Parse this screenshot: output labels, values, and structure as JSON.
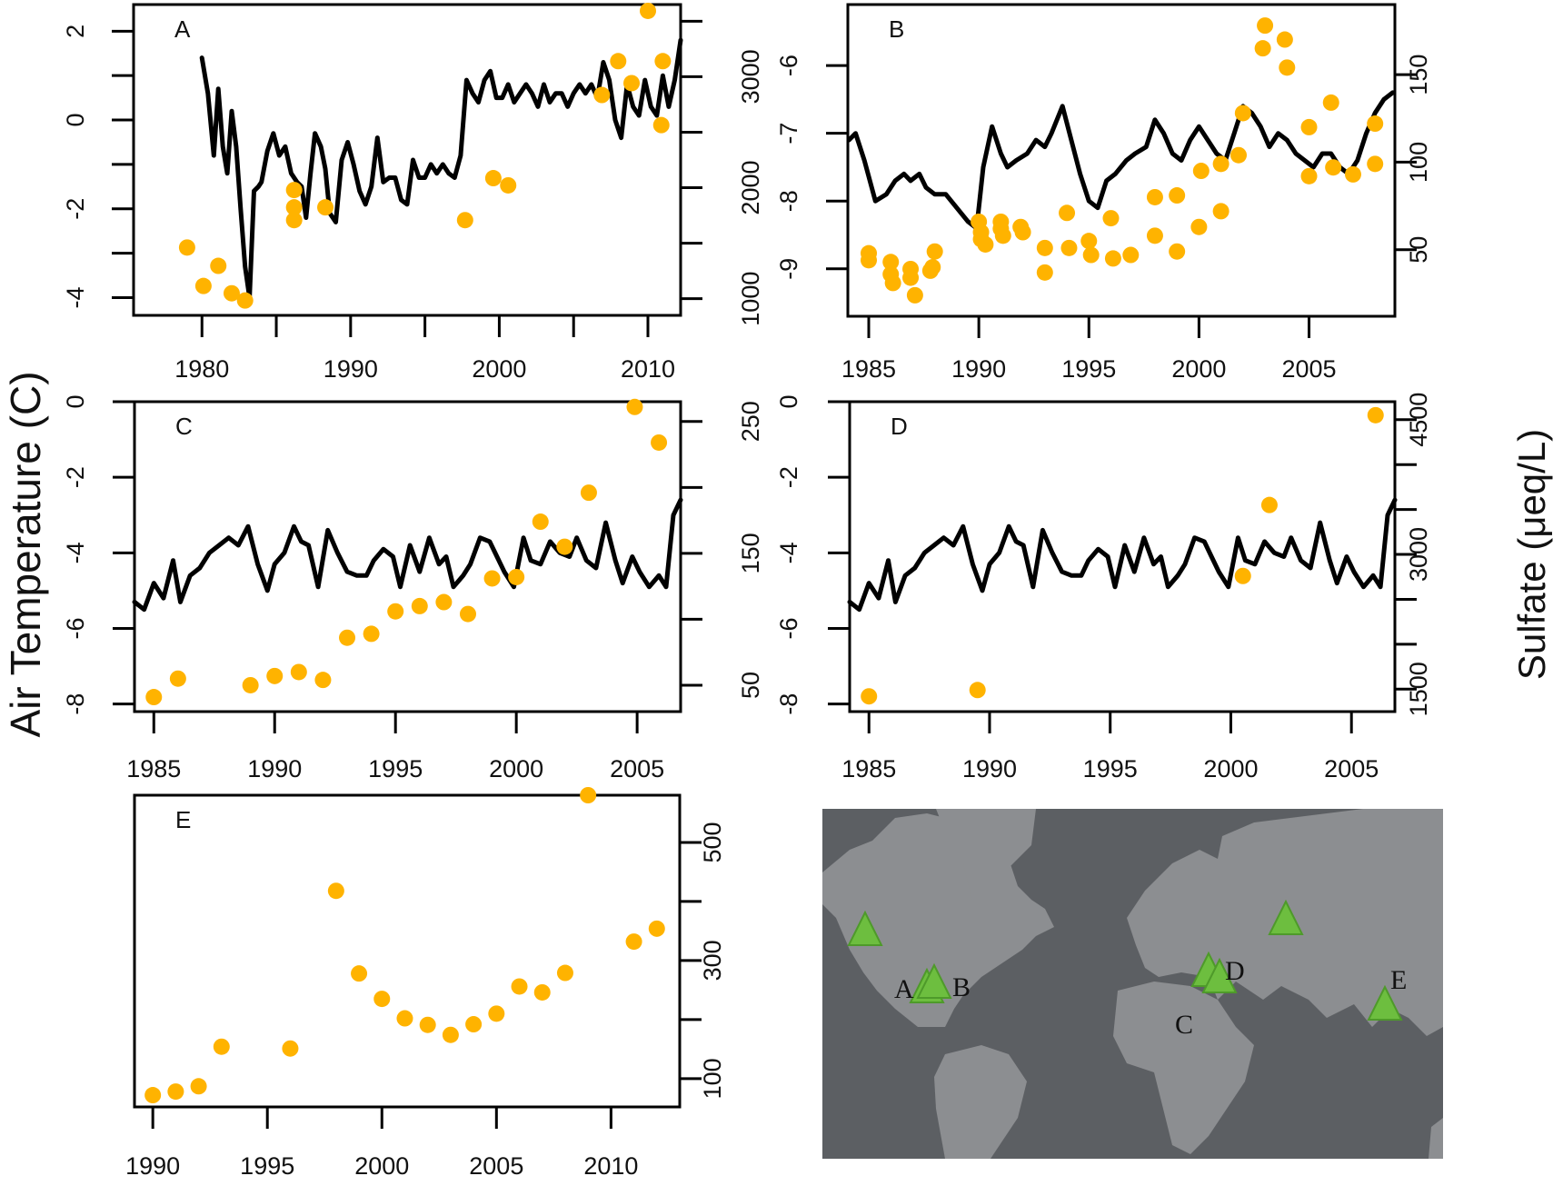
{
  "figure": {
    "left_axis_title": "Air Temperature (C)",
    "right_axis_title": "Sulfate (μeq/L)",
    "colors": {
      "temperature_line": "#000000",
      "sulfate_points": "#FFB300",
      "sulfate_title": "#FFB300",
      "map_ocean": "#5C5F63",
      "map_land": "#8C8E91",
      "site_marker": "#6DBE3F"
    }
  },
  "chart_data": [
    {
      "panel": "A",
      "type": "line+scatter",
      "xlim": [
        1975.4,
        2012.2
      ],
      "x_ticks": [
        1980,
        1985,
        1990,
        1995,
        2000,
        2005,
        2010
      ],
      "x_tick_labels": [
        "1980",
        "1990",
        "2000",
        "2010"
      ],
      "temperature": {
        "ylim": [
          -4.4,
          2.6
        ],
        "y_ticks": [
          2,
          1,
          0,
          -1,
          -2,
          -3,
          -4
        ],
        "y_tick_labels": [
          "2",
          "0",
          "-2",
          "-4"
        ],
        "x": [
          1980.0,
          1980.4,
          1980.8,
          1981.1,
          1981.4,
          1981.7,
          1982.0,
          1982.3,
          1982.6,
          1982.9,
          1983.2,
          1983.5,
          1983.8,
          1984.0,
          1984.4,
          1984.8,
          1985.2,
          1985.6,
          1986.0,
          1986.4,
          1986.7,
          1987.0,
          1987.3,
          1987.6,
          1988.0,
          1988.3,
          1988.6,
          1989.0,
          1989.4,
          1989.8,
          1990.2,
          1990.6,
          1991.0,
          1991.4,
          1991.8,
          1992.2,
          1992.6,
          1993.0,
          1993.4,
          1993.8,
          1994.2,
          1994.6,
          1995.0,
          1995.4,
          1995.8,
          1996.2,
          1996.6,
          1997.0,
          1997.4,
          1997.8,
          1998.2,
          1998.6,
          1999.0,
          1999.4,
          1999.8,
          2000.2,
          2000.6,
          2001.0,
          2001.4,
          2001.8,
          2002.2,
          2002.6,
          2003.0,
          2003.4,
          2003.8,
          2004.2,
          2004.6,
          2005.0,
          2005.4,
          2005.8,
          2006.2,
          2006.6,
          2007.0,
          2007.4,
          2007.8,
          2008.2,
          2008.6,
          2009.0,
          2009.4,
          2009.8,
          2010.2,
          2010.6,
          2011.0,
          2011.4,
          2011.8,
          2012.2
        ],
        "y": [
          1.4,
          0.6,
          -0.8,
          0.7,
          -0.6,
          -1.2,
          0.2,
          -0.6,
          -2.0,
          -3.3,
          -4.0,
          -1.6,
          -1.5,
          -1.4,
          -0.7,
          -0.3,
          -0.8,
          -0.6,
          -1.2,
          -1.4,
          -1.5,
          -2.2,
          -1.2,
          -0.3,
          -0.6,
          -1.1,
          -2.1,
          -2.3,
          -0.9,
          -0.5,
          -1.0,
          -1.6,
          -1.9,
          -1.5,
          -0.4,
          -1.4,
          -1.3,
          -1.3,
          -1.8,
          -1.9,
          -0.9,
          -1.3,
          -1.3,
          -1.0,
          -1.2,
          -1.0,
          -1.2,
          -1.3,
          -0.8,
          0.9,
          0.6,
          0.4,
          0.9,
          1.1,
          0.5,
          0.5,
          0.8,
          0.4,
          0.6,
          0.8,
          0.6,
          0.3,
          0.8,
          0.4,
          0.6,
          0.6,
          0.3,
          0.6,
          0.8,
          0.6,
          0.8,
          0.5,
          1.3,
          0.9,
          0.0,
          -0.4,
          0.8,
          0.3,
          0.1,
          0.9,
          0.3,
          0.1,
          1.0,
          0.3,
          0.9,
          1.8
        ]
      },
      "sulfate": {
        "ylim": [
          850,
          3650
        ],
        "y_ticks": [
          1000,
          1500,
          2000,
          2500,
          3000,
          3500
        ],
        "y_tick_labels": [
          "1000",
          "2000",
          "3000"
        ],
        "x": [
          1979.0,
          1980.1,
          1981.1,
          1982.0,
          1982.9,
          1986.2,
          1986.2,
          1986.2,
          1988.3,
          1997.7,
          1999.6,
          2000.6,
          2006.9,
          2008.0,
          2008.9,
          2010.0,
          2010.9,
          2011.0
        ],
        "y": [
          1461,
          1115,
          1296,
          1049,
          984,
          1979,
          1823,
          1708,
          1823,
          1708,
          2086,
          2021,
          2835,
          3140,
          2942,
          3593,
          2564,
          3140
        ]
      }
    },
    {
      "panel": "B",
      "type": "line+scatter",
      "xlim": [
        1984.05,
        2008.9
      ],
      "x_ticks": [
        1985,
        1990,
        1995,
        2000,
        2005
      ],
      "x_tick_labels": [
        "1985",
        "1990",
        "1995",
        "2000",
        "2005"
      ],
      "temperature": {
        "ylim": [
          -9.7,
          -5.1
        ],
        "y_ticks": [
          -6,
          -7,
          -8,
          -9
        ],
        "y_tick_labels": [
          "-6",
          "-7",
          "-8",
          "-9"
        ],
        "x": [
          1984.1,
          1984.4,
          1984.8,
          1985.3,
          1985.8,
          1986.2,
          1986.6,
          1986.9,
          1987.3,
          1987.6,
          1988.0,
          1988.5,
          1989.0,
          1989.5,
          1989.9,
          1990.2,
          1990.6,
          1991.0,
          1991.3,
          1991.7,
          1992.2,
          1992.6,
          1993.0,
          1993.3,
          1993.8,
          1994.2,
          1994.6,
          1995.0,
          1995.4,
          1995.8,
          1996.2,
          1996.7,
          1997.1,
          1997.6,
          1998.0,
          1998.4,
          1998.8,
          1999.2,
          1999.6,
          2000.0,
          2000.4,
          2000.8,
          2001.2,
          2001.6,
          2002.0,
          2002.4,
          2002.8,
          2003.2,
          2003.6,
          2004.0,
          2004.4,
          2004.8,
          2005.2,
          2005.6,
          2006.0,
          2006.4,
          2006.8,
          2007.2,
          2007.6,
          2008.0,
          2008.4,
          2008.8
        ],
        "y": [
          -7.1,
          -7.0,
          -7.4,
          -8.0,
          -7.9,
          -7.7,
          -7.6,
          -7.7,
          -7.6,
          -7.8,
          -7.9,
          -7.9,
          -8.1,
          -8.3,
          -8.4,
          -7.5,
          -6.9,
          -7.3,
          -7.5,
          -7.4,
          -7.3,
          -7.1,
          -7.2,
          -7.0,
          -6.6,
          -7.1,
          -7.6,
          -8.0,
          -8.1,
          -7.7,
          -7.6,
          -7.4,
          -7.3,
          -7.2,
          -6.8,
          -7.0,
          -7.3,
          -7.4,
          -7.1,
          -6.9,
          -7.1,
          -7.3,
          -7.4,
          -7.0,
          -6.6,
          -6.7,
          -6.9,
          -7.2,
          -7.0,
          -7.1,
          -7.3,
          -7.4,
          -7.5,
          -7.3,
          -7.3,
          -7.5,
          -7.6,
          -7.4,
          -7.0,
          -6.7,
          -6.5,
          -6.4
        ]
      },
      "sulfate": {
        "ylim": [
          12,
          190
        ],
        "y_ticks": [
          50,
          100,
          150
        ],
        "y_tick_labels": [
          "50",
          "100",
          "150"
        ],
        "x": [
          1985.0,
          1985.0,
          1986.0,
          1986.0,
          1986.1,
          1986.9,
          1986.9,
          1987.1,
          1987.8,
          1987.9,
          1988.0,
          1990.0,
          1990.1,
          1990.1,
          1990.3,
          1991.0,
          1991.0,
          1991.1,
          1991.9,
          1992.0,
          1993.0,
          1993.0,
          1994.0,
          1994.1,
          1995.0,
          1995.1,
          1996.0,
          1996.1,
          1996.9,
          1998.0,
          1998.0,
          1999.0,
          1999.0,
          2000.0,
          2000.1,
          2001.0,
          2001.0,
          2001.8,
          2002.0,
          2002.9,
          2003.0,
          2003.9,
          2004.0,
          2005.0,
          2005.0,
          2006.0,
          2006.1,
          2007.0,
          2008.0,
          2008.0
        ],
        "y": [
          48,
          44,
          43,
          36,
          31,
          39,
          34,
          24,
          38,
          40,
          49,
          66,
          60,
          56,
          53,
          66,
          62,
          58,
          63,
          60,
          51,
          37,
          71,
          51,
          55,
          47,
          68,
          45,
          47,
          58,
          80,
          81,
          49,
          63,
          95,
          99,
          72,
          104,
          128,
          165,
          178,
          170,
          154,
          120,
          92,
          134,
          97,
          93,
          99,
          122
        ]
      }
    },
    {
      "panel": "C",
      "type": "line+scatter",
      "xlim": [
        1984.2,
        2006.8
      ],
      "x_ticks": [
        1985,
        1990,
        1995,
        2000,
        2005
      ],
      "x_tick_labels": [
        "1985",
        "1990",
        "1995",
        "2000",
        "2005"
      ],
      "temperature": {
        "ylim": [
          -8.2,
          0.0
        ],
        "y_ticks": [
          0,
          -2,
          -4,
          -6,
          -8
        ],
        "y_tick_labels": [
          "0",
          "-2",
          "-4",
          "-6",
          "-8"
        ],
        "x": [
          1984.2,
          1984.6,
          1985.0,
          1985.4,
          1985.8,
          1986.1,
          1986.5,
          1986.9,
          1987.3,
          1987.7,
          1988.1,
          1988.5,
          1988.9,
          1989.3,
          1989.7,
          1990.0,
          1990.4,
          1990.8,
          1991.1,
          1991.4,
          1991.8,
          1992.2,
          1992.6,
          1993.0,
          1993.4,
          1993.8,
          1994.1,
          1994.5,
          1994.9,
          1995.2,
          1995.6,
          1996.0,
          1996.4,
          1996.8,
          1997.1,
          1997.4,
          1997.8,
          1998.1,
          1998.5,
          1998.9,
          1999.2,
          1999.5,
          1999.9,
          2000.3,
          2000.6,
          2001.0,
          2001.4,
          2001.8,
          2002.2,
          2002.5,
          2002.9,
          2003.3,
          2003.7,
          2004.1,
          2004.4,
          2004.8,
          2005.1,
          2005.5,
          2005.9,
          2006.2,
          2006.5,
          2006.8
        ],
        "y": [
          -5.3,
          -5.5,
          -4.8,
          -5.2,
          -4.2,
          -5.3,
          -4.6,
          -4.4,
          -4.0,
          -3.8,
          -3.6,
          -3.8,
          -3.3,
          -4.3,
          -5.0,
          -4.3,
          -4.0,
          -3.3,
          -3.7,
          -3.8,
          -4.9,
          -3.4,
          -4.0,
          -4.5,
          -4.6,
          -4.6,
          -4.2,
          -3.9,
          -4.1,
          -4.9,
          -3.8,
          -4.5,
          -3.6,
          -4.3,
          -4.1,
          -4.9,
          -4.6,
          -4.3,
          -3.6,
          -3.7,
          -4.1,
          -4.5,
          -4.9,
          -3.6,
          -4.2,
          -4.3,
          -3.7,
          -4.0,
          -4.1,
          -3.6,
          -4.2,
          -4.4,
          -3.2,
          -4.2,
          -4.8,
          -4.1,
          -4.5,
          -4.9,
          -4.6,
          -4.9,
          -3.0,
          -2.6
        ]
      },
      "sulfate": {
        "ylim": [
          30,
          265
        ],
        "y_ticks": [
          50,
          100,
          150,
          200,
          250
        ],
        "y_tick_labels": [
          "50",
          "150",
          "250"
        ],
        "x": [
          1985.0,
          1986.0,
          1989.0,
          1990.0,
          1991.0,
          1992.0,
          1993.0,
          1994.0,
          1995.0,
          1996.0,
          1997.0,
          1998.0,
          1999.0,
          2000.0,
          2001.0,
          2002.0,
          2003.0,
          2004.9,
          2005.9
        ],
        "y": [
          41,
          55,
          50,
          57,
          60,
          54,
          86,
          89,
          106,
          110,
          113,
          104,
          131,
          132,
          174,
          155,
          196,
          261,
          234
        ]
      }
    },
    {
      "panel": "D",
      "type": "line+scatter",
      "xlim": [
        1984.2,
        2006.8
      ],
      "x_ticks": [
        1985,
        1990,
        1995,
        2000,
        2005
      ],
      "x_tick_labels": [
        "1985",
        "1990",
        "1995",
        "2000",
        "2005"
      ],
      "temperature": {
        "ylim": [
          -8.2,
          0.0
        ],
        "y_ticks": [
          0,
          -2,
          -4,
          -6,
          -8
        ],
        "y_tick_labels": [
          "0",
          "-2",
          "-4",
          "-6",
          "-8"
        ],
        "same_as_panel": "C"
      },
      "sulfate": {
        "ylim": [
          1250,
          4700
        ],
        "y_ticks": [
          1500,
          2000,
          2500,
          3000,
          3500,
          4000,
          4500
        ],
        "y_tick_labels": [
          "1500",
          "3000",
          "4500"
        ],
        "x": [
          1985.0,
          1989.5,
          2000.5,
          2001.6,
          2006.0
        ],
        "y": [
          1420,
          1490,
          2760,
          3550,
          4550
        ]
      }
    },
    {
      "panel": "E",
      "type": "scatter",
      "xlim": [
        1989.2,
        2013.0
      ],
      "x_ticks": [
        1990,
        1995,
        2000,
        2005,
        2010
      ],
      "x_tick_labels": [
        "1990",
        "1995",
        "2000",
        "2005",
        "2010"
      ],
      "sulfate": {
        "ylim": [
          52,
          580
        ],
        "y_ticks": [
          100,
          200,
          300,
          400,
          500
        ],
        "y_tick_labels": [
          "100",
          "300",
          "500"
        ],
        "x": [
          1990,
          1991,
          1992,
          1993,
          1996,
          1998,
          1999,
          2000,
          2001,
          2002,
          2003,
          2004,
          2005,
          2006,
          2007,
          2008,
          2009,
          2011,
          2012
        ],
        "y": [
          72,
          78,
          87,
          154,
          151,
          418,
          278,
          235,
          202,
          191,
          174,
          192,
          210,
          256,
          246,
          279,
          580,
          332,
          354
        ]
      }
    }
  ],
  "map": {
    "sites": [
      {
        "label": "A",
        "name": "site-a"
      },
      {
        "label": "B",
        "name": "site-b"
      },
      {
        "label": "C",
        "name": "site-c"
      },
      {
        "label": "D",
        "name": "site-d"
      },
      {
        "label": "E",
        "name": "site-e"
      }
    ]
  }
}
